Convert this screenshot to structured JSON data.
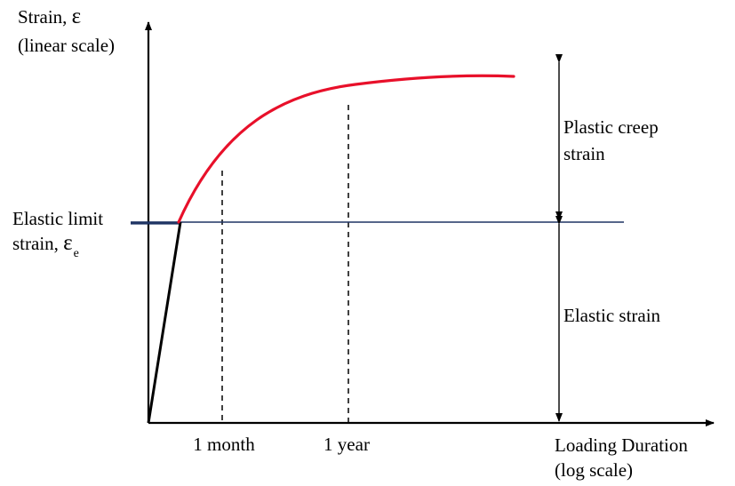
{
  "colors": {
    "creep_curve": "#e8102a",
    "elastic_limit_line": "#1f3464",
    "axes": "#000000",
    "elastic_line": "#000000",
    "guides": "#000000"
  },
  "y_axis": {
    "label_line1": "Strain, ",
    "label_symbol": "ε",
    "label_line2": "(linear scale)"
  },
  "x_axis": {
    "label_line1": "Loading Duration",
    "label_line2": "(log scale)",
    "ticks": [
      "1 month",
      "1 year"
    ]
  },
  "elastic_limit": {
    "label_line1": "Elastic limit",
    "label_line2": "strain, ",
    "symbol": "ε",
    "subscript": "e"
  },
  "regions": {
    "plastic_line1": "Plastic creep",
    "plastic_line2": "strain",
    "elastic": "Elastic strain"
  }
}
